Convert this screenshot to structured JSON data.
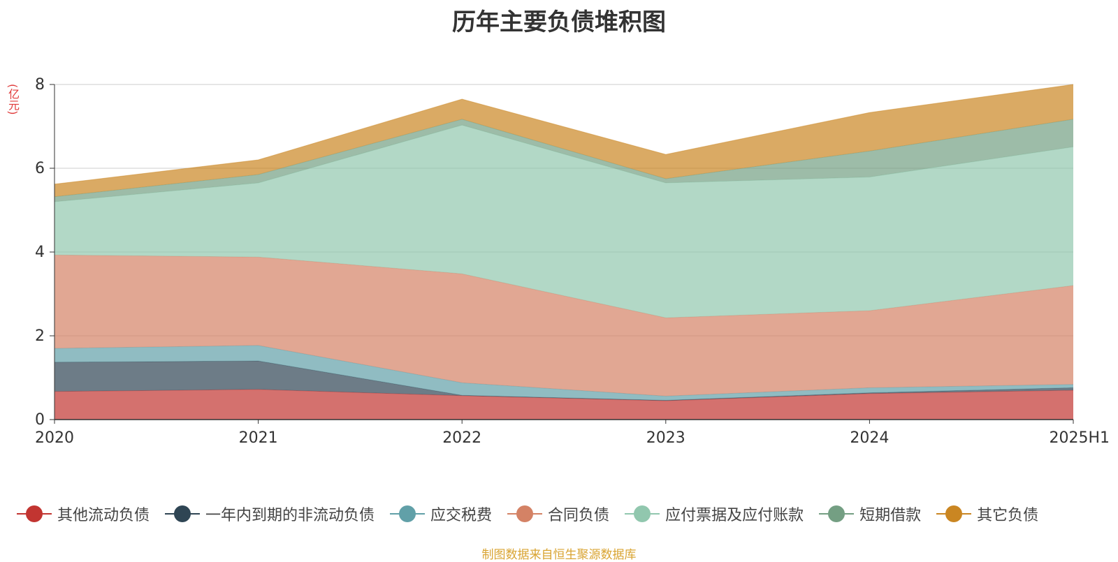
{
  "chart_data": {
    "type": "area",
    "stacked": true,
    "title": "历年主要负债堆积图",
    "unit_label": "(亿元)",
    "source": "制图数据来自恒生聚源数据库",
    "categories": [
      "2020",
      "2021",
      "2022",
      "2023",
      "2024",
      "2025H1"
    ],
    "ylim": [
      0,
      8
    ],
    "yticks": [
      0,
      2,
      4,
      6,
      8
    ],
    "grid": true,
    "legend_position": "bottom",
    "series": [
      {
        "name": "其他流动负债",
        "color": "#c23531",
        "values": [
          0.67,
          0.72,
          0.57,
          0.45,
          0.62,
          0.7
        ]
      },
      {
        "name": "一年内到期的非流动负债",
        "color": "#2f4554",
        "values": [
          0.7,
          0.68,
          0.01,
          0.01,
          0.02,
          0.06
        ]
      },
      {
        "name": "应交税费",
        "color": "#61a0a8",
        "values": [
          0.33,
          0.37,
          0.3,
          0.1,
          0.12,
          0.08
        ]
      },
      {
        "name": "合同负债",
        "color": "#d48265",
        "values": [
          2.23,
          2.11,
          2.6,
          1.87,
          1.84,
          2.36
        ]
      },
      {
        "name": "应付票据及应付账款",
        "color": "#91c7ae",
        "values": [
          1.27,
          1.77,
          3.55,
          3.22,
          3.19,
          3.31
        ]
      },
      {
        "name": "短期借款",
        "color": "#749f83",
        "values": [
          0.12,
          0.2,
          0.14,
          0.1,
          0.62,
          0.66
        ]
      },
      {
        "name": "其它负债",
        "color": "#ca8622",
        "values": [
          0.3,
          0.35,
          0.48,
          0.58,
          0.92,
          0.83
        ]
      }
    ]
  }
}
